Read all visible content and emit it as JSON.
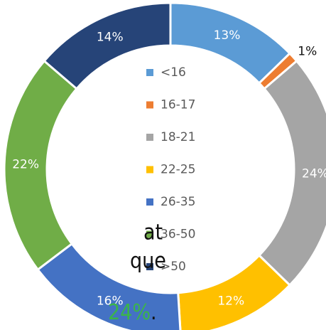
{
  "chart_data": {
    "type": "donut",
    "categories": [
      "<16",
      "16-17",
      "18-21",
      "22-25",
      "26-35",
      "36-50",
      ">50"
    ],
    "values": [
      13,
      1,
      24,
      12,
      16,
      22,
      14
    ],
    "value_labels": [
      "13%",
      "1%",
      "24%",
      "12%",
      "16%",
      "22%",
      "14%"
    ],
    "colors": [
      "#5b9bd5",
      "#ed7d31",
      "#a5a5a5",
      "#ffc000",
      "#4472c4",
      "#70ad47",
      "#264478"
    ],
    "legend": "center"
  },
  "text_fragments": {
    "lines": [
      "at",
      "que"
    ],
    "highlight": "24%",
    "tail": "."
  }
}
